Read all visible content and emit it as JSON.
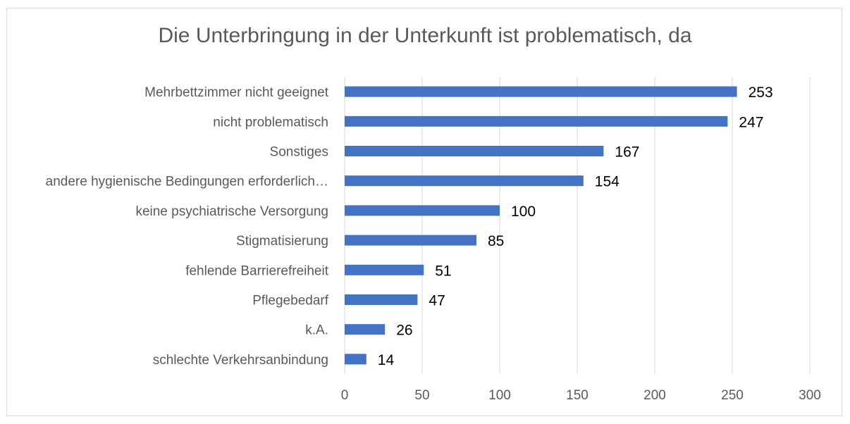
{
  "chart_data": {
    "type": "bar",
    "orientation": "horizontal",
    "title": "Die Unterbringung in der Unterkunft ist problematisch, da",
    "categories": [
      "Mehrbettzimmer nicht geeignet",
      "nicht problematisch",
      "Sonstiges",
      "andere hygienische Bedingungen erforderlich…",
      "keine psychiatrische Versorgung",
      "Stigmatisierung",
      "fehlende Barrierefreiheit",
      "Pflegebedarf",
      "k.A.",
      "schlechte Verkehrsanbindung"
    ],
    "values": [
      253,
      247,
      167,
      154,
      100,
      85,
      51,
      47,
      26,
      14
    ],
    "xlim": [
      0,
      300
    ],
    "xticks": [
      0,
      50,
      100,
      150,
      200,
      250,
      300
    ],
    "grid": true,
    "legend": "none",
    "bar_color": "#4472c4",
    "grid_color": "#d9d9d9"
  }
}
